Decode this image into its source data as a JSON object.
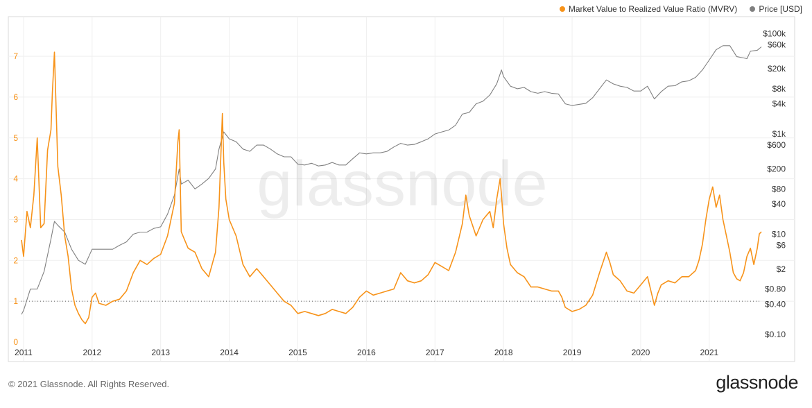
{
  "legend": [
    {
      "label": "Market Value to Realized Value Ratio (MVRV)",
      "color": "#f7931a",
      "icon": "legend-dot"
    },
    {
      "label": "Price [USD]",
      "color": "#808080",
      "icon": "legend-dot"
    }
  ],
  "watermark": "glassnode",
  "footer": {
    "copyright": "© 2021 Glassnode. All Rights Reserved.",
    "brand": "glassnode"
  },
  "chart_data": {
    "type": "line",
    "title": "",
    "xlabel": "",
    "x_ticks": [
      "2011",
      "2012",
      "2013",
      "2014",
      "2015",
      "2016",
      "2017",
      "2018",
      "2019",
      "2020",
      "2021"
    ],
    "xlim": [
      2010.96,
      2021.76
    ],
    "y_left": {
      "label": "",
      "ticks": [
        "0",
        "1",
        "2",
        "3",
        "4",
        "5",
        "6",
        "7"
      ],
      "ylim": [
        0,
        7.8
      ],
      "color": "#f7931a"
    },
    "y_right": {
      "label": "",
      "scale": "log",
      "ticks": [
        "$0.10",
        "$0.40",
        "$0.80",
        "$2",
        "$6",
        "$10",
        "$40",
        "$80",
        "$200",
        "$600",
        "$1k",
        "$4k",
        "$8k",
        "$20k",
        "$60k",
        "$100k"
      ],
      "ylim": [
        0.07,
        160000
      ]
    },
    "reference_line": {
      "y": 1,
      "axis": "left",
      "style": "dotted"
    },
    "grid": true,
    "series": [
      {
        "name": "Market Value to Realized Value Ratio (MVRV)",
        "axis": "left",
        "color": "#f7931a",
        "points": [
          [
            2010.97,
            2.5
          ],
          [
            2011.0,
            2.1
          ],
          [
            2011.05,
            3.2
          ],
          [
            2011.1,
            2.8
          ],
          [
            2011.15,
            3.6
          ],
          [
            2011.2,
            5.0
          ],
          [
            2011.25,
            2.8
          ],
          [
            2011.3,
            2.9
          ],
          [
            2011.35,
            4.7
          ],
          [
            2011.4,
            5.2
          ],
          [
            2011.42,
            6.1
          ],
          [
            2011.45,
            7.1
          ],
          [
            2011.5,
            4.3
          ],
          [
            2011.55,
            3.6
          ],
          [
            2011.6,
            2.6
          ],
          [
            2011.65,
            2.1
          ],
          [
            2011.7,
            1.3
          ],
          [
            2011.75,
            0.9
          ],
          [
            2011.8,
            0.7
          ],
          [
            2011.85,
            0.55
          ],
          [
            2011.9,
            0.45
          ],
          [
            2011.95,
            0.6
          ],
          [
            2012.0,
            1.1
          ],
          [
            2012.05,
            1.2
          ],
          [
            2012.1,
            0.95
          ],
          [
            2012.2,
            0.9
          ],
          [
            2012.3,
            1.0
          ],
          [
            2012.4,
            1.05
          ],
          [
            2012.5,
            1.25
          ],
          [
            2012.6,
            1.7
          ],
          [
            2012.7,
            2.0
          ],
          [
            2012.8,
            1.9
          ],
          [
            2012.9,
            2.05
          ],
          [
            2013.0,
            2.15
          ],
          [
            2013.1,
            2.6
          ],
          [
            2013.2,
            3.4
          ],
          [
            2013.25,
            4.9
          ],
          [
            2013.27,
            5.2
          ],
          [
            2013.3,
            2.7
          ],
          [
            2013.35,
            2.5
          ],
          [
            2013.4,
            2.3
          ],
          [
            2013.5,
            2.2
          ],
          [
            2013.6,
            1.8
          ],
          [
            2013.7,
            1.6
          ],
          [
            2013.8,
            2.2
          ],
          [
            2013.85,
            3.3
          ],
          [
            2013.9,
            5.6
          ],
          [
            2013.92,
            4.4
          ],
          [
            2013.95,
            3.5
          ],
          [
            2014.0,
            3.0
          ],
          [
            2014.1,
            2.6
          ],
          [
            2014.2,
            1.9
          ],
          [
            2014.3,
            1.6
          ],
          [
            2014.4,
            1.8
          ],
          [
            2014.5,
            1.6
          ],
          [
            2014.6,
            1.4
          ],
          [
            2014.7,
            1.2
          ],
          [
            2014.8,
            1.0
          ],
          [
            2014.9,
            0.9
          ],
          [
            2015.0,
            0.7
          ],
          [
            2015.1,
            0.75
          ],
          [
            2015.2,
            0.7
          ],
          [
            2015.3,
            0.65
          ],
          [
            2015.4,
            0.7
          ],
          [
            2015.5,
            0.8
          ],
          [
            2015.6,
            0.75
          ],
          [
            2015.7,
            0.7
          ],
          [
            2015.8,
            0.85
          ],
          [
            2015.9,
            1.1
          ],
          [
            2016.0,
            1.25
          ],
          [
            2016.1,
            1.15
          ],
          [
            2016.2,
            1.2
          ],
          [
            2016.3,
            1.25
          ],
          [
            2016.4,
            1.3
          ],
          [
            2016.5,
            1.7
          ],
          [
            2016.6,
            1.5
          ],
          [
            2016.7,
            1.45
          ],
          [
            2016.8,
            1.5
          ],
          [
            2016.9,
            1.65
          ],
          [
            2017.0,
            1.95
          ],
          [
            2017.1,
            1.85
          ],
          [
            2017.2,
            1.75
          ],
          [
            2017.3,
            2.2
          ],
          [
            2017.4,
            2.9
          ],
          [
            2017.45,
            3.6
          ],
          [
            2017.5,
            3.1
          ],
          [
            2017.6,
            2.6
          ],
          [
            2017.7,
            3.0
          ],
          [
            2017.8,
            3.2
          ],
          [
            2017.85,
            2.8
          ],
          [
            2017.9,
            3.5
          ],
          [
            2017.95,
            4.0
          ],
          [
            2017.97,
            3.6
          ],
          [
            2018.0,
            2.9
          ],
          [
            2018.05,
            2.3
          ],
          [
            2018.1,
            1.9
          ],
          [
            2018.2,
            1.7
          ],
          [
            2018.3,
            1.6
          ],
          [
            2018.4,
            1.35
          ],
          [
            2018.5,
            1.35
          ],
          [
            2018.6,
            1.3
          ],
          [
            2018.7,
            1.25
          ],
          [
            2018.8,
            1.25
          ],
          [
            2018.85,
            1.1
          ],
          [
            2018.9,
            0.85
          ],
          [
            2019.0,
            0.75
          ],
          [
            2019.1,
            0.8
          ],
          [
            2019.2,
            0.9
          ],
          [
            2019.3,
            1.15
          ],
          [
            2019.4,
            1.7
          ],
          [
            2019.5,
            2.2
          ],
          [
            2019.55,
            1.95
          ],
          [
            2019.6,
            1.65
          ],
          [
            2019.7,
            1.5
          ],
          [
            2019.8,
            1.25
          ],
          [
            2019.9,
            1.2
          ],
          [
            2020.0,
            1.4
          ],
          [
            2020.1,
            1.6
          ],
          [
            2020.2,
            0.9
          ],
          [
            2020.25,
            1.2
          ],
          [
            2020.3,
            1.4
          ],
          [
            2020.4,
            1.5
          ],
          [
            2020.5,
            1.45
          ],
          [
            2020.6,
            1.6
          ],
          [
            2020.7,
            1.6
          ],
          [
            2020.8,
            1.75
          ],
          [
            2020.85,
            2.0
          ],
          [
            2020.9,
            2.4
          ],
          [
            2020.95,
            3.0
          ],
          [
            2021.0,
            3.5
          ],
          [
            2021.05,
            3.8
          ],
          [
            2021.1,
            3.3
          ],
          [
            2021.15,
            3.6
          ],
          [
            2021.2,
            3.0
          ],
          [
            2021.25,
            2.6
          ],
          [
            2021.3,
            2.2
          ],
          [
            2021.35,
            1.7
          ],
          [
            2021.4,
            1.55
          ],
          [
            2021.45,
            1.5
          ],
          [
            2021.5,
            1.7
          ],
          [
            2021.55,
            2.1
          ],
          [
            2021.6,
            2.3
          ],
          [
            2021.65,
            1.9
          ],
          [
            2021.7,
            2.3
          ],
          [
            2021.73,
            2.65
          ],
          [
            2021.76,
            2.7
          ]
        ]
      },
      {
        "name": "Price [USD]",
        "axis": "right",
        "color": "#808080",
        "points": [
          [
            2010.97,
            0.25
          ],
          [
            2011.0,
            0.3
          ],
          [
            2011.1,
            0.8
          ],
          [
            2011.2,
            0.8
          ],
          [
            2011.3,
            1.8
          ],
          [
            2011.4,
            8
          ],
          [
            2011.45,
            18
          ],
          [
            2011.5,
            15
          ],
          [
            2011.6,
            11
          ],
          [
            2011.7,
            5
          ],
          [
            2011.8,
            3
          ],
          [
            2011.9,
            2.5
          ],
          [
            2012.0,
            5
          ],
          [
            2012.1,
            5
          ],
          [
            2012.2,
            5
          ],
          [
            2012.3,
            5
          ],
          [
            2012.4,
            6
          ],
          [
            2012.5,
            7
          ],
          [
            2012.6,
            10
          ],
          [
            2012.7,
            11
          ],
          [
            2012.8,
            11
          ],
          [
            2012.9,
            13
          ],
          [
            2013.0,
            14
          ],
          [
            2013.1,
            25
          ],
          [
            2013.2,
            60
          ],
          [
            2013.27,
            200
          ],
          [
            2013.3,
            100
          ],
          [
            2013.4,
            120
          ],
          [
            2013.5,
            80
          ],
          [
            2013.6,
            100
          ],
          [
            2013.7,
            130
          ],
          [
            2013.8,
            200
          ],
          [
            2013.85,
            500
          ],
          [
            2013.92,
            1100
          ],
          [
            2014.0,
            800
          ],
          [
            2014.1,
            700
          ],
          [
            2014.2,
            500
          ],
          [
            2014.3,
            450
          ],
          [
            2014.4,
            600
          ],
          [
            2014.5,
            600
          ],
          [
            2014.6,
            500
          ],
          [
            2014.7,
            400
          ],
          [
            2014.8,
            350
          ],
          [
            2014.9,
            350
          ],
          [
            2015.0,
            250
          ],
          [
            2015.1,
            240
          ],
          [
            2015.2,
            260
          ],
          [
            2015.3,
            230
          ],
          [
            2015.4,
            240
          ],
          [
            2015.5,
            270
          ],
          [
            2015.6,
            240
          ],
          [
            2015.7,
            240
          ],
          [
            2015.8,
            320
          ],
          [
            2015.9,
            420
          ],
          [
            2016.0,
            400
          ],
          [
            2016.1,
            420
          ],
          [
            2016.2,
            420
          ],
          [
            2016.3,
            450
          ],
          [
            2016.4,
            550
          ],
          [
            2016.5,
            650
          ],
          [
            2016.6,
            600
          ],
          [
            2016.7,
            620
          ],
          [
            2016.8,
            700
          ],
          [
            2016.9,
            800
          ],
          [
            2017.0,
            1000
          ],
          [
            2017.1,
            1100
          ],
          [
            2017.2,
            1200
          ],
          [
            2017.3,
            1500
          ],
          [
            2017.4,
            2500
          ],
          [
            2017.5,
            2700
          ],
          [
            2017.6,
            4000
          ],
          [
            2017.7,
            4500
          ],
          [
            2017.8,
            6000
          ],
          [
            2017.9,
            10000
          ],
          [
            2017.97,
            19000
          ],
          [
            2018.0,
            14000
          ],
          [
            2018.1,
            9000
          ],
          [
            2018.2,
            8000
          ],
          [
            2018.3,
            8500
          ],
          [
            2018.4,
            7000
          ],
          [
            2018.5,
            6500
          ],
          [
            2018.6,
            7000
          ],
          [
            2018.7,
            6500
          ],
          [
            2018.8,
            6300
          ],
          [
            2018.9,
            4000
          ],
          [
            2019.0,
            3700
          ],
          [
            2019.1,
            3900
          ],
          [
            2019.2,
            4100
          ],
          [
            2019.3,
            5300
          ],
          [
            2019.4,
            8000
          ],
          [
            2019.5,
            12000
          ],
          [
            2019.6,
            10000
          ],
          [
            2019.7,
            9000
          ],
          [
            2019.8,
            8500
          ],
          [
            2019.9,
            7200
          ],
          [
            2020.0,
            7200
          ],
          [
            2020.1,
            9000
          ],
          [
            2020.2,
            5000
          ],
          [
            2020.3,
            7000
          ],
          [
            2020.4,
            9000
          ],
          [
            2020.5,
            9200
          ],
          [
            2020.6,
            11000
          ],
          [
            2020.7,
            11500
          ],
          [
            2020.8,
            13500
          ],
          [
            2020.9,
            19000
          ],
          [
            2021.0,
            30000
          ],
          [
            2021.1,
            48000
          ],
          [
            2021.2,
            58000
          ],
          [
            2021.3,
            58000
          ],
          [
            2021.4,
            35000
          ],
          [
            2021.5,
            33000
          ],
          [
            2021.55,
            32000
          ],
          [
            2021.6,
            45000
          ],
          [
            2021.7,
            47000
          ],
          [
            2021.76,
            55000
          ]
        ]
      }
    ]
  }
}
